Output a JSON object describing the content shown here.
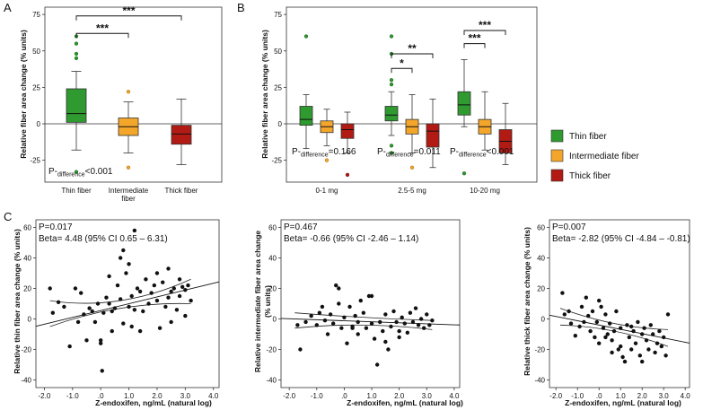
{
  "colors": {
    "thin": "#2e9a2f",
    "thin_dark": "#1a6a1c",
    "intermediate": "#f4a62a",
    "intermediate_dark": "#b57510",
    "thick": "#b21a14",
    "thick_dark": "#6e0a07",
    "axis": "#333333",
    "dot": "#111111"
  },
  "panels": {
    "A": {
      "label": "A"
    },
    "B": {
      "label": "B"
    },
    "C": {
      "label": "C"
    }
  },
  "legend": {
    "thin": "Thin fiber",
    "intermediate": "Intermediate fiber",
    "thick": "Thick fiber"
  },
  "chart_data": [
    {
      "id": "A",
      "type": "box",
      "ylabel": "Relative fiber area change (% units)",
      "ylim": [
        -40,
        80
      ],
      "yticks": [
        -25,
        0,
        25,
        50,
        75
      ],
      "xtick_lines": [
        [
          "Thin fiber"
        ],
        [
          "Intermediate",
          "fiber"
        ],
        [
          "Thick fiber"
        ]
      ],
      "boxes": [
        {
          "group": "thin",
          "min": -18,
          "q1": 1,
          "median": 7,
          "q3": 24,
          "max": 36,
          "outliers": [
            60,
            55,
            48,
            45,
            -33
          ]
        },
        {
          "group": "intermediate",
          "min": -20,
          "q1": -8,
          "median": -2,
          "q3": 4,
          "max": 15,
          "outliers": [
            22,
            -30
          ]
        },
        {
          "group": "thick",
          "min": -28,
          "q1": -14,
          "median": -7,
          "q3": -1,
          "max": 17,
          "outliers": []
        }
      ],
      "brackets": [
        {
          "from": 0,
          "to": 1,
          "y": 62,
          "label": "***"
        },
        {
          "from": 0,
          "to": 2,
          "y": 74,
          "label": "***"
        }
      ],
      "p_prefix": "P-",
      "p_sub": "difference",
      "p_value": "<0.001"
    },
    {
      "id": "B",
      "type": "box",
      "ylabel": "Relative fiber area change (% units)",
      "ylim": [
        -40,
        80
      ],
      "yticks": [
        -25,
        0,
        25,
        50,
        75
      ],
      "categories": [
        "0-1 mg",
        "2.5-5 mg",
        "10-20 mg"
      ],
      "groups": [
        {
          "thin": {
            "min": -17,
            "q1": -1,
            "median": 3,
            "q3": 12,
            "max": 20,
            "outliers": [
              60
            ]
          },
          "intermediate": {
            "min": -15,
            "q1": -6,
            "median": -2,
            "q3": 2,
            "max": 10,
            "outliers": [
              -25
            ]
          },
          "thick": {
            "min": -20,
            "q1": -10,
            "median": -4,
            "q3": 0,
            "max": 8,
            "outliers": [
              -35
            ]
          }
        },
        {
          "thin": {
            "min": -8,
            "q1": 2,
            "median": 6,
            "q3": 12,
            "max": 22,
            "outliers": [
              60,
              48,
              30,
              27,
              -15,
              -20
            ]
          },
          "intermediate": {
            "min": -20,
            "q1": -7,
            "median": -2,
            "q3": 3,
            "max": 20,
            "outliers": [
              -30
            ]
          },
          "thick": {
            "min": -30,
            "q1": -16,
            "median": -5,
            "q3": 0,
            "max": 17,
            "outliers": []
          }
        },
        {
          "thin": {
            "min": -2,
            "q1": 6,
            "median": 13,
            "q3": 22,
            "max": 44,
            "outliers": [
              -34
            ]
          },
          "intermediate": {
            "min": -18,
            "q1": -7,
            "median": -2,
            "q3": 3,
            "max": 22,
            "outliers": []
          },
          "thick": {
            "min": -28,
            "q1": -20,
            "median": -12,
            "q3": -4,
            "max": 14,
            "outliers": []
          }
        }
      ],
      "brackets": [
        {
          "cat": 1,
          "from": "thin",
          "to": "intermediate",
          "y": 38,
          "label": "*"
        },
        {
          "cat": 1,
          "from": "thin",
          "to": "thick",
          "y": 48,
          "label": "**"
        },
        {
          "cat": 2,
          "from": "thin",
          "to": "intermediate",
          "y": 55,
          "label": "***"
        },
        {
          "cat": 2,
          "from": "thin",
          "to": "thick",
          "y": 64,
          "label": "***"
        }
      ],
      "p_values": [
        "=0.166",
        "=0.011",
        "<0.001"
      ],
      "p_prefix": "P-",
      "p_sub": "difference"
    },
    {
      "id": "C1",
      "type": "scatter",
      "ylabel_lines": [
        "Relative thin fiber area change (% units)"
      ],
      "xlabel": "Z-endoxifen, ng/mL (natural log)",
      "xlim": [
        -2.3,
        4.2
      ],
      "ylim": [
        -45,
        65
      ],
      "xticks": [
        -2.0,
        -1.0,
        0.0,
        1.0,
        2.0,
        3.0,
        4.0
      ],
      "xtick_labels": [
        "-2.0",
        "-1.0",
        ".0",
        "1.0",
        "2.0",
        "3.0",
        "4.0"
      ],
      "yticks": [
        -40,
        -20,
        0,
        20,
        40,
        60
      ],
      "p_text": "P=0.017",
      "beta_text": "Beta= 4.48 (95% CI 0.65 – 6.31)",
      "fit": {
        "intercept": 5.5,
        "slope": 4.48
      },
      "ci": {
        "low": [
          [
            -1.8,
            -5
          ],
          [
            0.7,
            7
          ],
          [
            3.2,
            10
          ]
        ],
        "high": [
          [
            -1.8,
            12
          ],
          [
            0.7,
            12
          ],
          [
            3.2,
            26
          ]
        ]
      },
      "points": [
        [
          -1.8,
          20
        ],
        [
          -1.7,
          4
        ],
        [
          -1.5,
          11
        ],
        [
          -1.3,
          8
        ],
        [
          -1.1,
          -18
        ],
        [
          -0.9,
          20
        ],
        [
          -0.8,
          -2
        ],
        [
          -0.7,
          17
        ],
        [
          -0.6,
          3
        ],
        [
          -0.5,
          -14
        ],
        [
          -0.4,
          7
        ],
        [
          -0.3,
          5
        ],
        [
          -0.2,
          -2
        ],
        [
          -0.1,
          10
        ],
        [
          0.0,
          -16
        ],
        [
          0.0,
          -14
        ],
        [
          0.05,
          -34
        ],
        [
          0.1,
          4
        ],
        [
          0.2,
          14
        ],
        [
          0.3,
          28
        ],
        [
          0.3,
          10
        ],
        [
          0.4,
          5
        ],
        [
          0.5,
          7
        ],
        [
          0.6,
          22
        ],
        [
          0.7,
          40
        ],
        [
          0.7,
          13
        ],
        [
          0.8,
          45
        ],
        [
          0.8,
          -3
        ],
        [
          0.9,
          30
        ],
        [
          1.0,
          8
        ],
        [
          1.0,
          36
        ],
        [
          1.1,
          -5
        ],
        [
          1.2,
          58
        ],
        [
          1.2,
          6
        ],
        [
          1.3,
          20
        ],
        [
          1.4,
          18
        ],
        [
          1.4,
          -8
        ],
        [
          1.5,
          5
        ],
        [
          1.6,
          26
        ],
        [
          1.7,
          10
        ],
        [
          1.8,
          17
        ],
        [
          1.9,
          22
        ],
        [
          2.0,
          30
        ],
        [
          2.0,
          12
        ],
        [
          2.1,
          -6
        ],
        [
          2.2,
          24
        ],
        [
          2.3,
          8
        ],
        [
          2.4,
          14
        ],
        [
          2.5,
          -2
        ],
        [
          2.5,
          18
        ],
        [
          2.6,
          20
        ],
        [
          2.7,
          6
        ],
        [
          2.8,
          26
        ],
        [
          2.9,
          21
        ],
        [
          3.0,
          19
        ],
        [
          3.0,
          2
        ],
        [
          3.1,
          22
        ],
        [
          3.2,
          12
        ],
        [
          2.4,
          33
        ],
        [
          1.1,
          15
        ],
        [
          0.4,
          -8
        ],
        [
          2.8,
          15
        ]
      ]
    },
    {
      "id": "C2",
      "type": "scatter",
      "ylabel_lines": [
        "Relative intermediate fiber area change",
        "(% units)"
      ],
      "xlabel": "Z-endoxifen, ng/mL (natural log)",
      "xlim": [
        -2.3,
        4.2
      ],
      "ylim": [
        -45,
        65
      ],
      "xticks": [
        -2.0,
        -1.0,
        0.0,
        1.0,
        2.0,
        3.0,
        4.0
      ],
      "xtick_labels": [
        "-2.0",
        "-1.0",
        ".0",
        "1.0",
        "2.0",
        "3.0",
        "4.0"
      ],
      "yticks": [
        -40,
        -20,
        0,
        20,
        40,
        60
      ],
      "p_text": "P=0.467",
      "beta_text": "Beta= -0.66 (95% CI -2.46 – 1.14)",
      "fit": {
        "intercept": -1.2,
        "slope": -0.66
      },
      "ci": {
        "low": [
          [
            -1.8,
            -6
          ],
          [
            0.7,
            -4
          ],
          [
            3.2,
            -7
          ]
        ],
        "high": [
          [
            -1.8,
            4
          ],
          [
            0.7,
            1
          ],
          [
            3.2,
            -1
          ]
        ]
      },
      "points": [
        [
          -1.7,
          -4
        ],
        [
          -1.6,
          -20
        ],
        [
          -1.4,
          -2
        ],
        [
          -1.2,
          2
        ],
        [
          -1.0,
          -4
        ],
        [
          -0.9,
          4
        ],
        [
          -0.8,
          8
        ],
        [
          -0.7,
          -1
        ],
        [
          -0.6,
          -10
        ],
        [
          -0.5,
          3
        ],
        [
          -0.4,
          -3
        ],
        [
          -0.3,
          22
        ],
        [
          -0.2,
          20
        ],
        [
          -0.1,
          -6
        ],
        [
          0.0,
          1
        ],
        [
          0.1,
          -16
        ],
        [
          0.2,
          8
        ],
        [
          0.3,
          -5
        ],
        [
          0.4,
          2
        ],
        [
          0.5,
          -2
        ],
        [
          0.5,
          -10
        ],
        [
          0.6,
          12
        ],
        [
          0.7,
          4
        ],
        [
          0.8,
          -6
        ],
        [
          0.9,
          15
        ],
        [
          1.0,
          15
        ],
        [
          1.0,
          -3
        ],
        [
          1.1,
          -13
        ],
        [
          1.2,
          -30
        ],
        [
          1.3,
          -2
        ],
        [
          1.4,
          -8
        ],
        [
          1.5,
          3
        ],
        [
          1.6,
          -20
        ],
        [
          1.7,
          -5
        ],
        [
          1.8,
          5
        ],
        [
          1.9,
          -2
        ],
        [
          2.0,
          -12
        ],
        [
          2.1,
          1
        ],
        [
          2.2,
          -3
        ],
        [
          2.3,
          -9
        ],
        [
          2.4,
          4
        ],
        [
          2.5,
          -2
        ],
        [
          2.6,
          7
        ],
        [
          2.7,
          -4
        ],
        [
          2.8,
          0
        ],
        [
          2.9,
          -6
        ],
        [
          3.0,
          3
        ],
        [
          3.1,
          -4
        ],
        [
          3.2,
          -1
        ],
        [
          0.3,
          -6
        ],
        [
          1.5,
          -15
        ],
        [
          2.0,
          -8
        ],
        [
          -0.2,
          10
        ]
      ]
    },
    {
      "id": "C3",
      "type": "scatter",
      "ylabel_lines": [
        "Relative thick fiber area change (% units)"
      ],
      "xlabel": "Z-endoxifen, ng/mL (natural log)",
      "xlim": [
        -2.3,
        4.2
      ],
      "ylim": [
        -45,
        65
      ],
      "xticks": [
        -2.0,
        -1.0,
        0.0,
        1.0,
        2.0,
        3.0,
        4.0
      ],
      "xtick_labels": [
        "-2.0",
        "-1.0",
        ".0",
        "1.0",
        "2.0",
        "3.0",
        "4.0"
      ],
      "yticks": [
        -40,
        -20,
        0,
        20,
        40,
        60
      ],
      "p_text": "P=0.007",
      "beta_text": "Beta= -2.82 (95% CI -4.84 – -0.81)",
      "fit": {
        "intercept": -4.0,
        "slope": -2.82
      },
      "ci": {
        "low": [
          [
            -1.8,
            -4
          ],
          [
            0.7,
            -8
          ],
          [
            3.2,
            -18
          ]
        ],
        "high": [
          [
            -1.8,
            7
          ],
          [
            0.7,
            -3
          ],
          [
            3.2,
            -7
          ]
        ]
      },
      "points": [
        [
          -1.7,
          17
        ],
        [
          -1.6,
          3
        ],
        [
          -1.4,
          5
        ],
        [
          -1.3,
          -3
        ],
        [
          -1.1,
          -11
        ],
        [
          -0.9,
          -5
        ],
        [
          -0.8,
          8
        ],
        [
          -0.7,
          -2
        ],
        [
          -0.6,
          14
        ],
        [
          -0.5,
          2
        ],
        [
          -0.4,
          -8
        ],
        [
          -0.3,
          5
        ],
        [
          -0.2,
          -12
        ],
        [
          -0.1,
          -2
        ],
        [
          0.0,
          12
        ],
        [
          0.0,
          -16
        ],
        [
          0.1,
          8
        ],
        [
          0.2,
          -6
        ],
        [
          0.3,
          3
        ],
        [
          0.4,
          -10
        ],
        [
          0.5,
          -3
        ],
        [
          0.6,
          -14
        ],
        [
          0.6,
          -22
        ],
        [
          0.7,
          -8
        ],
        [
          0.8,
          5
        ],
        [
          0.9,
          -20
        ],
        [
          1.0,
          -18
        ],
        [
          1.0,
          -6
        ],
        [
          1.1,
          -25
        ],
        [
          1.2,
          -28
        ],
        [
          1.3,
          -4
        ],
        [
          1.4,
          -12
        ],
        [
          1.5,
          -20
        ],
        [
          1.6,
          -8
        ],
        [
          1.7,
          -16
        ],
        [
          1.8,
          -2
        ],
        [
          1.9,
          -24
        ],
        [
          2.0,
          -10
        ],
        [
          2.1,
          -6
        ],
        [
          2.2,
          -14
        ],
        [
          2.3,
          -20
        ],
        [
          2.4,
          -4
        ],
        [
          2.5,
          -10
        ],
        [
          2.6,
          -22
        ],
        [
          2.7,
          -16
        ],
        [
          2.8,
          -8
        ],
        [
          2.9,
          -18
        ],
        [
          3.0,
          -12
        ],
        [
          3.1,
          -24
        ],
        [
          3.2,
          3
        ],
        [
          2.0,
          -28
        ],
        [
          0.3,
          -12
        ],
        [
          1.5,
          -5
        ]
      ]
    }
  ]
}
